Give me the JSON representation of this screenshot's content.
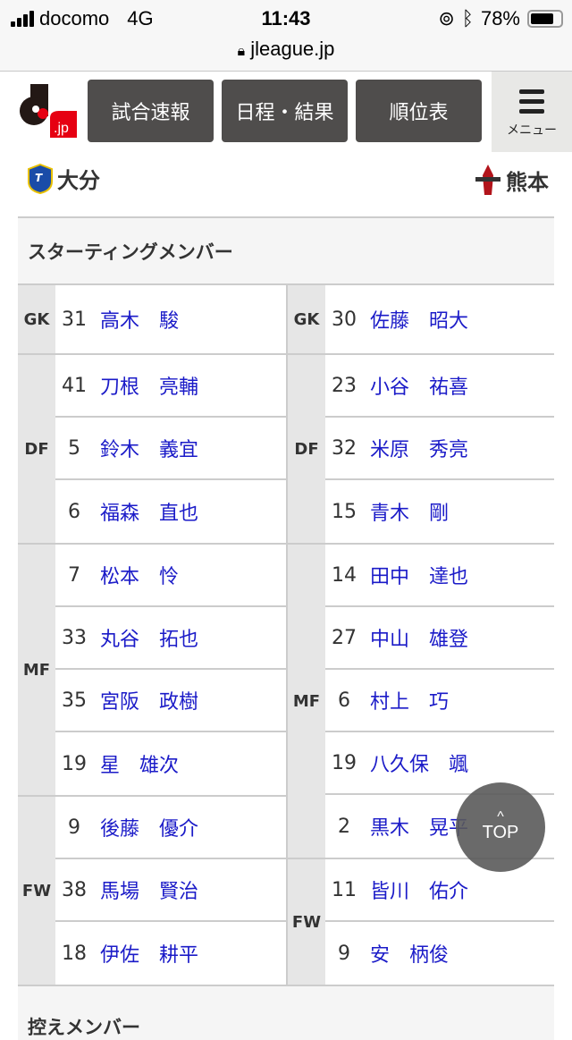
{
  "status_bar": {
    "carrier": "docomo",
    "network": "4G",
    "time": "11:43",
    "battery": "78%",
    "url": "jleague.jp"
  },
  "nav": {
    "logo": ".jp",
    "buttons": [
      "試合速報",
      "日程・結果",
      "順位表"
    ],
    "menu_label": "メニュー"
  },
  "teams": {
    "home": "大分",
    "away": "熊本"
  },
  "starting_title": "スターティングメンバー",
  "subs_title": "控えメンバー",
  "top_button": "TOP",
  "colors": {
    "nav_button": "#4f4d4c",
    "player_link": "#1b1bc8",
    "position_bg": "#e6e6e6"
  },
  "home": [
    {
      "pos": "GK",
      "players": [
        {
          "num": "31",
          "name": "高木　駿"
        }
      ]
    },
    {
      "pos": "DF",
      "players": [
        {
          "num": "41",
          "name": "刀根　亮輔"
        },
        {
          "num": "5",
          "name": "鈴木　義宜"
        },
        {
          "num": "6",
          "name": "福森　直也"
        }
      ]
    },
    {
      "pos": "MF",
      "players": [
        {
          "num": "7",
          "name": "松本　怜"
        },
        {
          "num": "33",
          "name": "丸谷　拓也"
        },
        {
          "num": "35",
          "name": "宮阪　政樹"
        },
        {
          "num": "19",
          "name": "星　雄次"
        }
      ]
    },
    {
      "pos": "FW",
      "players": [
        {
          "num": "9",
          "name": "後藤　優介"
        },
        {
          "num": "38",
          "name": "馬場　賢治"
        },
        {
          "num": "18",
          "name": "伊佐　耕平"
        }
      ]
    }
  ],
  "away": [
    {
      "pos": "GK",
      "players": [
        {
          "num": "30",
          "name": "佐藤　昭大"
        }
      ]
    },
    {
      "pos": "DF",
      "players": [
        {
          "num": "23",
          "name": "小谷　祐喜"
        },
        {
          "num": "32",
          "name": "米原　秀亮"
        },
        {
          "num": "15",
          "name": "青木　剛"
        }
      ]
    },
    {
      "pos": "MF",
      "players": [
        {
          "num": "14",
          "name": "田中　達也"
        },
        {
          "num": "27",
          "name": "中山　雄登"
        },
        {
          "num": "6",
          "name": "村上　巧"
        },
        {
          "num": "19",
          "name": "八久保　颯"
        },
        {
          "num": "2",
          "name": "黒木　晃平"
        }
      ]
    },
    {
      "pos": "FW",
      "players": [
        {
          "num": "11",
          "name": "皆川　佑介"
        },
        {
          "num": "9",
          "name": "安　柄俊"
        }
      ]
    }
  ]
}
